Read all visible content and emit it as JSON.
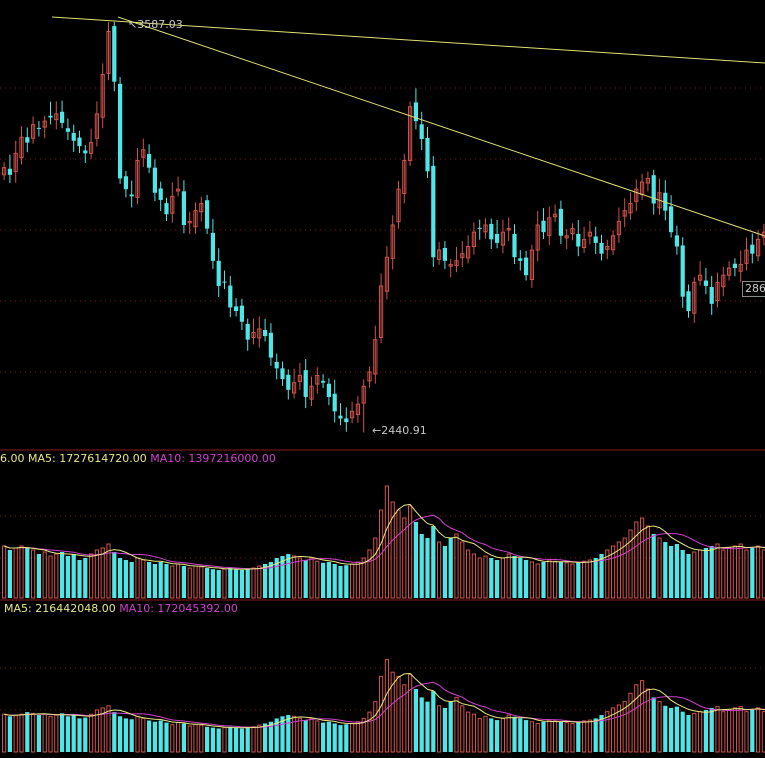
{
  "colors": {
    "background": "#000000",
    "up": "#d0524a",
    "down": "#4ee6e6",
    "ma5": "#e8e880",
    "ma10": "#d040d0",
    "trendline": "#e0e070",
    "grid": "#7a1a1a",
    "text": "#c8c8c8"
  },
  "annotations": {
    "high_label": "3587.03",
    "low_label": "2440.91",
    "right_price_box": "286"
  },
  "volume_panel": {
    "prefix": "6.00",
    "ma5_label": "MA5: 1727614720.00",
    "ma10_label": "MA10: 1397216000.00"
  },
  "amount_panel": {
    "ma5_label": "MA5: 216442048.00",
    "ma10_label": "MA10: 172045392.00"
  },
  "chart_data": [
    {
      "type": "candlestick",
      "panel": "price",
      "grid": true,
      "high": 3587.03,
      "low": 2440.91,
      "close": [
        3180,
        3160,
        3220,
        3265,
        3250,
        3300,
        3290,
        3310,
        3320,
        3330,
        3305,
        3280,
        3255,
        3240,
        3220,
        3250,
        3330,
        3440,
        3560,
        3420,
        3150,
        3120,
        3100,
        3200,
        3230,
        3180,
        3110,
        3090,
        3050,
        3100,
        3120,
        3020,
        3030,
        3060,
        3080,
        3010,
        2920,
        2850,
        2860,
        2790,
        2780,
        2750,
        2700,
        2720,
        2730,
        2710,
        2650,
        2620,
        2590,
        2560,
        2580,
        2600,
        2540,
        2570,
        2600,
        2580,
        2540,
        2500,
        2480,
        2470,
        2500,
        2520,
        2570,
        2610,
        2700,
        2850,
        2930,
        3020,
        3120,
        3200,
        3350,
        3310,
        3260,
        3170,
        2930,
        2950,
        2920,
        2910,
        2920,
        2940,
        2960,
        3000,
        3010,
        3020,
        2980,
        2970,
        3000,
        3010,
        2930,
        2920,
        2880,
        2950,
        3020,
        3000,
        3040,
        3050,
        2990,
        2990,
        3010,
        2960,
        2980,
        3000,
        2970,
        2940,
        2960,
        2990,
        3030,
        3060,
        3080,
        3120,
        3140,
        3150,
        3080,
        3110,
        3060,
        3000,
        2960,
        2820,
        2780,
        2860,
        2880,
        2850,
        2800,
        2860,
        2880,
        2900,
        2900,
        2910,
        2950,
        2940,
        2980,
        3000,
        3010
      ]
    },
    {
      "type": "bar",
      "panel": "volume",
      "series": [
        {
          "name": "MA5",
          "value": 1727614720.0
        },
        {
          "name": "MA10",
          "value": 1397216000.0
        }
      ],
      "values": [
        1.3,
        1.2,
        1.25,
        1.3,
        1.25,
        1.2,
        1.1,
        1.15,
        1.05,
        1.1,
        1.15,
        1.05,
        1.1,
        0.95,
        1.0,
        1.1,
        1.2,
        1.25,
        1.35,
        1.15,
        1.0,
        0.95,
        0.9,
        1.0,
        0.95,
        0.9,
        0.85,
        0.9,
        0.85,
        0.8,
        0.85,
        0.8,
        0.75,
        0.8,
        0.78,
        0.75,
        0.72,
        0.7,
        0.72,
        0.75,
        0.72,
        0.7,
        0.72,
        0.75,
        0.8,
        0.85,
        0.9,
        1.0,
        1.05,
        1.1,
        1.05,
        1.0,
        0.95,
        1.0,
        0.92,
        0.88,
        0.9,
        0.85,
        0.8,
        0.82,
        0.85,
        0.9,
        1.0,
        1.2,
        1.5,
        2.2,
        2.8,
        2.4,
        2.2,
        2.0,
        2.3,
        1.9,
        1.6,
        1.5,
        1.8,
        1.4,
        1.3,
        1.5,
        1.6,
        1.4,
        1.2,
        1.1,
        1.0,
        1.05,
        1.0,
        0.95,
        1.0,
        1.1,
        1.05,
        1.0,
        0.95,
        0.9,
        0.85,
        0.9,
        0.95,
        0.92,
        0.9,
        0.88,
        0.85,
        0.9,
        0.92,
        0.95,
        1.0,
        1.1,
        1.2,
        1.3,
        1.4,
        1.5,
        1.7,
        1.9,
        2.0,
        1.8,
        1.6,
        1.5,
        1.4,
        1.3,
        1.35,
        1.2,
        1.1,
        1.15,
        1.2,
        1.25,
        1.3,
        1.35,
        1.2,
        1.25,
        1.3,
        1.35,
        1.2,
        1.25,
        1.3,
        1.2,
        1.3
      ]
    },
    {
      "type": "bar",
      "panel": "amount",
      "series": [
        {
          "name": "MA5",
          "value": 216442048.0
        },
        {
          "name": "MA10",
          "value": 172045392.0
        }
      ],
      "values": [
        0.9,
        0.85,
        0.88,
        0.9,
        0.95,
        0.92,
        0.88,
        0.9,
        0.85,
        0.88,
        0.92,
        0.85,
        0.9,
        0.8,
        0.82,
        0.9,
        1.0,
        1.05,
        1.1,
        0.95,
        0.85,
        0.8,
        0.78,
        0.85,
        0.8,
        0.75,
        0.72,
        0.75,
        0.7,
        0.65,
        0.7,
        0.68,
        0.62,
        0.66,
        0.64,
        0.6,
        0.58,
        0.56,
        0.58,
        0.6,
        0.58,
        0.56,
        0.58,
        0.6,
        0.64,
        0.68,
        0.72,
        0.8,
        0.85,
        0.88,
        0.85,
        0.8,
        0.75,
        0.8,
        0.74,
        0.7,
        0.72,
        0.68,
        0.64,
        0.66,
        0.68,
        0.72,
        0.8,
        0.95,
        1.2,
        1.8,
        2.2,
        1.9,
        1.8,
        1.6,
        1.85,
        1.5,
        1.3,
        1.2,
        1.45,
        1.1,
        1.05,
        1.2,
        1.3,
        1.1,
        0.95,
        0.9,
        0.8,
        0.85,
        0.8,
        0.76,
        0.8,
        0.88,
        0.84,
        0.8,
        0.76,
        0.72,
        0.68,
        0.72,
        0.76,
        0.74,
        0.72,
        0.7,
        0.68,
        0.72,
        0.74,
        0.76,
        0.8,
        0.88,
        0.96,
        1.05,
        1.12,
        1.2,
        1.4,
        1.6,
        1.7,
        1.5,
        1.3,
        1.2,
        1.1,
        1.05,
        1.08,
        0.96,
        0.88,
        0.92,
        0.96,
        1.0,
        1.05,
        1.08,
        0.96,
        1.0,
        1.05,
        1.08,
        0.96,
        1.0,
        1.05,
        0.96,
        1.05
      ]
    }
  ]
}
